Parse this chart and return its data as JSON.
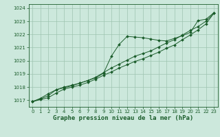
{
  "background_color": "#cce8dc",
  "plot_bg_color": "#cce8dc",
  "line_color": "#1a5c2a",
  "grid_color": "#9dc4b0",
  "xlabel": "Graphe pression niveau de la mer (hPa)",
  "ylim": [
    1016.5,
    1024.3
  ],
  "xlim": [
    -0.5,
    23.5
  ],
  "yticks": [
    1017,
    1018,
    1019,
    1020,
    1021,
    1022,
    1023,
    1024
  ],
  "xticks": [
    0,
    1,
    2,
    3,
    4,
    5,
    6,
    7,
    8,
    9,
    10,
    11,
    12,
    13,
    14,
    15,
    16,
    17,
    18,
    19,
    20,
    21,
    22,
    23
  ],
  "line1_x": [
    0,
    1,
    2,
    3,
    4,
    5,
    6,
    7,
    8,
    9,
    10,
    11,
    12,
    13,
    14,
    15,
    16,
    17,
    18,
    19,
    20,
    21,
    22,
    23
  ],
  "line1_y": [
    1016.9,
    1017.15,
    1017.5,
    1017.8,
    1018.0,
    1018.15,
    1018.3,
    1018.5,
    1018.7,
    1019.05,
    1020.35,
    1021.25,
    1021.85,
    1021.8,
    1021.75,
    1021.65,
    1021.55,
    1021.5,
    1021.7,
    1021.9,
    1022.15,
    1023.05,
    1023.15,
    1023.65
  ],
  "line2_x": [
    0,
    1,
    2,
    3,
    4,
    5,
    6,
    7,
    8,
    9,
    10,
    11,
    12,
    13,
    14,
    15,
    16,
    17,
    18,
    19,
    20,
    21,
    22,
    23
  ],
  "line2_y": [
    1016.9,
    1017.1,
    1017.35,
    1017.8,
    1017.95,
    1018.1,
    1018.3,
    1018.5,
    1018.75,
    1019.1,
    1019.45,
    1019.75,
    1020.05,
    1020.35,
    1020.55,
    1020.75,
    1021.05,
    1021.35,
    1021.6,
    1021.95,
    1022.3,
    1022.6,
    1023.0,
    1023.6
  ],
  "line3_x": [
    0,
    1,
    2,
    3,
    4,
    5,
    6,
    7,
    8,
    9,
    10,
    11,
    12,
    13,
    14,
    15,
    16,
    17,
    18,
    19,
    20,
    21,
    22,
    23
  ],
  "line3_y": [
    1016.9,
    1017.05,
    1017.2,
    1017.55,
    1017.85,
    1018.0,
    1018.15,
    1018.35,
    1018.6,
    1018.9,
    1019.15,
    1019.45,
    1019.7,
    1019.95,
    1020.15,
    1020.4,
    1020.65,
    1020.95,
    1021.2,
    1021.6,
    1021.95,
    1022.35,
    1022.8,
    1023.6
  ],
  "title_fontsize": 6.5,
  "tick_fontsize": 5.0,
  "lw": 0.7,
  "ms": 2.0
}
